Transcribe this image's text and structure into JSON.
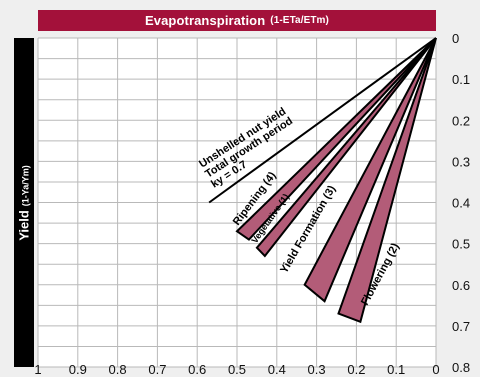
{
  "chart_data": {
    "type": "line",
    "title": "Evapotranspiration",
    "title_unit": "(1-ETa/ETm)",
    "ylabel": "Yield",
    "ylabel_unit": "(1-Ya/Ym)",
    "x_axis": {
      "reversed": true,
      "range": [
        1,
        0
      ],
      "ticks": [
        "1",
        "0.9",
        "0.8",
        "0.7",
        "0.6",
        "0.5",
        "0.4",
        "0.3",
        "0.2",
        "0.1",
        "0"
      ],
      "position": "bottom"
    },
    "y_axis": {
      "inverted": true,
      "range": [
        0,
        0.8
      ],
      "ticks": [
        "0",
        "0.1",
        "0.2",
        "0.3",
        "0.4",
        "0.5",
        "0.6",
        "0.7",
        "0.8"
      ],
      "position": "right"
    },
    "grid": true,
    "origin": [
      0,
      0
    ],
    "total_line": {
      "end": [
        0.57,
        0.4
      ],
      "label_lines": [
        "Unshelled nut yield",
        "Total growth period",
        "ky = 0.7"
      ]
    },
    "bands": [
      {
        "label": "Ripening (4)",
        "ends": [
          [
            0.5,
            0.47
          ],
          [
            0.47,
            0.49
          ]
        ]
      },
      {
        "label": "Vegetative (1)",
        "ends": [
          [
            0.45,
            0.51
          ],
          [
            0.43,
            0.53
          ]
        ]
      },
      {
        "label": "Yield Formation (3)",
        "ends": [
          [
            0.33,
            0.6
          ],
          [
            0.28,
            0.64
          ]
        ]
      },
      {
        "label": "Flowering (2)",
        "ends": [
          [
            0.245,
            0.67
          ],
          [
            0.19,
            0.69
          ]
        ]
      }
    ],
    "colors": {
      "band_fill": "#b35c78",
      "grid": "#b9b9b9",
      "plot_bg": "#ffffff",
      "banner": "#a3113a",
      "line": "#000000"
    }
  }
}
